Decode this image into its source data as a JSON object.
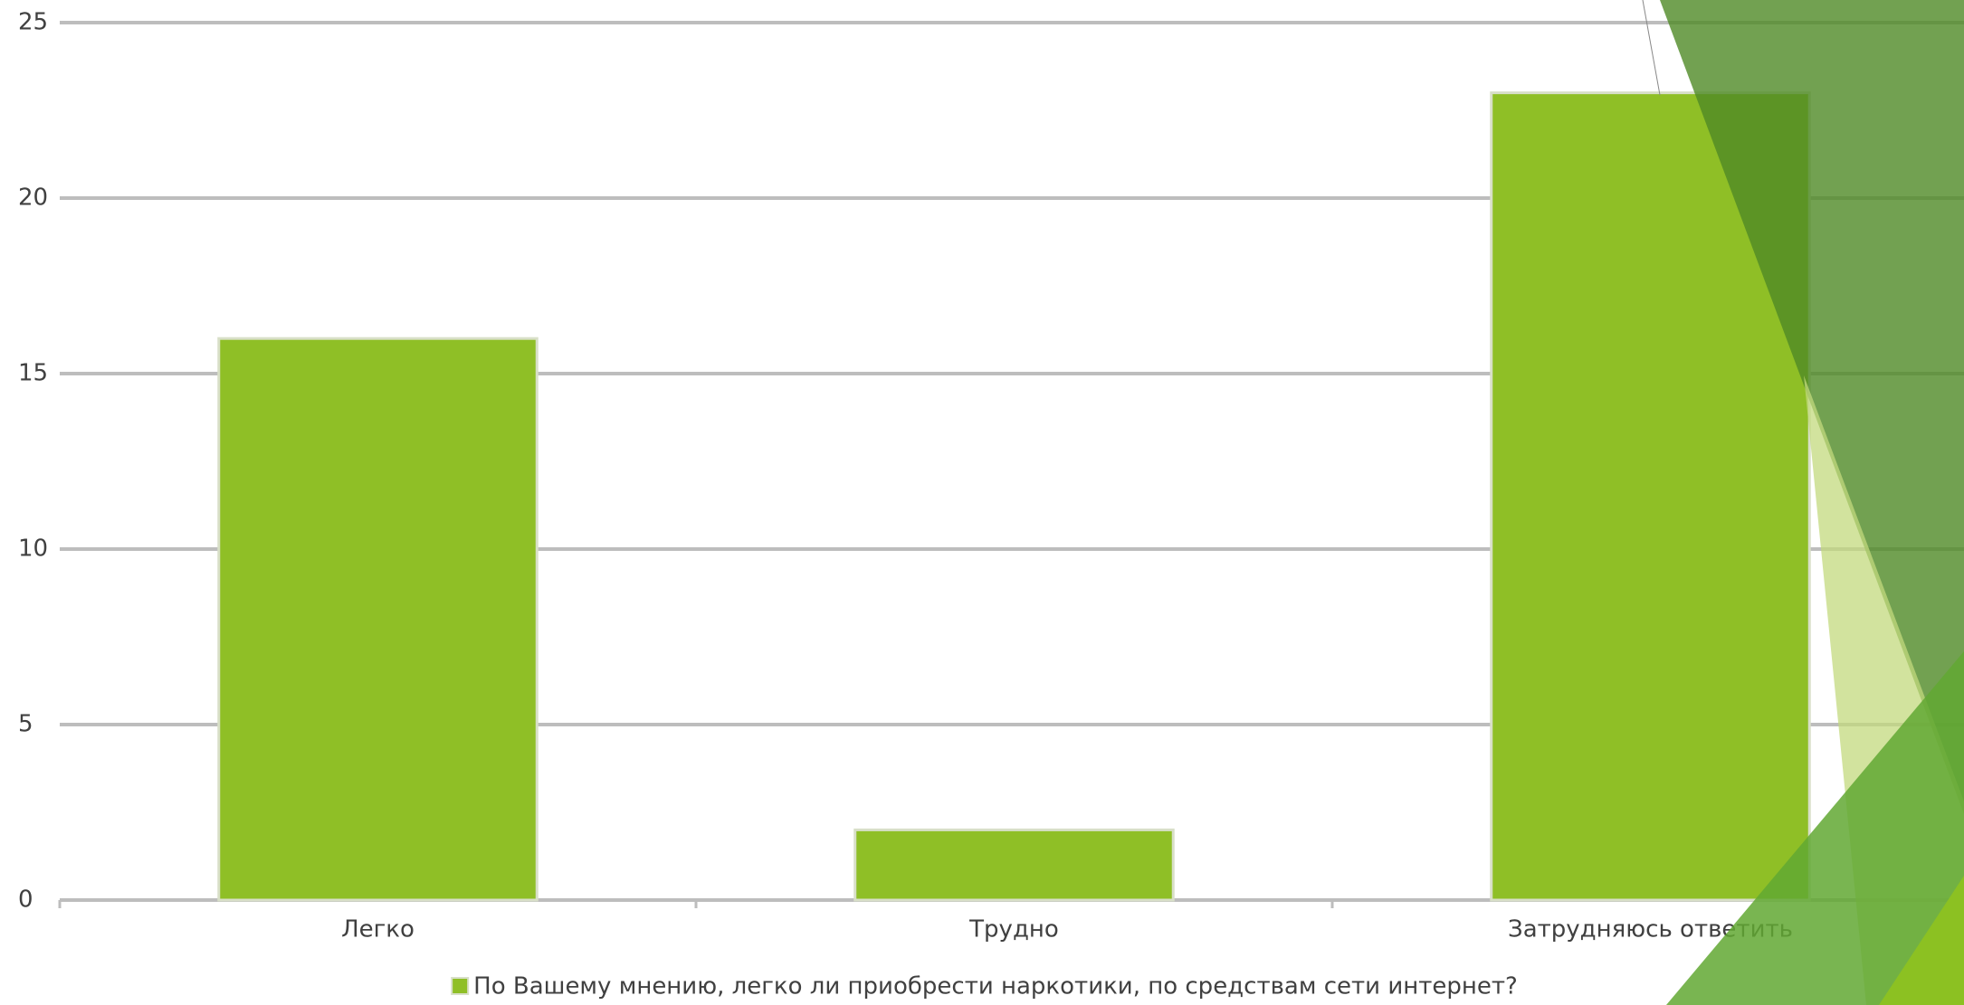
{
  "chart_data": {
    "type": "bar",
    "categories": [
      "Легко",
      "Трудно",
      "Затрудняюсь ответить"
    ],
    "series": [
      {
        "name": "По Вашему мнению, легко ли приобрести наркотики, по средствам сети интернет?",
        "color": "#8fbf26",
        "values": [
          16,
          2,
          23
        ]
      }
    ],
    "ylim": [
      0,
      25
    ],
    "yticks": [
      0,
      5,
      10,
      15,
      20,
      25
    ],
    "grid": true,
    "legend": "bottom"
  }
}
